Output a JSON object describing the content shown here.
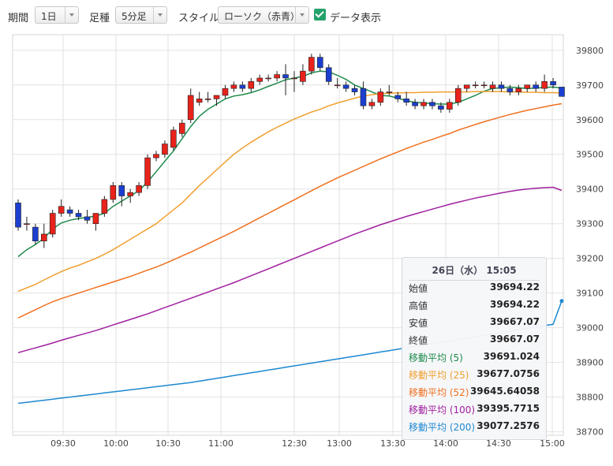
{
  "toolbar": {
    "period_label": "期間",
    "period_value": "1日",
    "type_label": "足種",
    "type_value": "5分足",
    "style_label": "スタイル",
    "style_value": "ローソク（赤青）",
    "data_display_label": "データ表示",
    "data_display_checked": true
  },
  "tooltip": {
    "date": "26日（水）",
    "time": "15:05",
    "rows": [
      {
        "label": "始値",
        "value": "39694.22",
        "color": "#333333"
      },
      {
        "label": "高値",
        "value": "39694.22",
        "color": "#333333"
      },
      {
        "label": "安値",
        "value": "39667.07",
        "color": "#333333"
      },
      {
        "label": "終値",
        "value": "39667.07",
        "color": "#333333"
      },
      {
        "label": "移動平均 (5)",
        "value": "39691.024",
        "color": "#1e8a4c"
      },
      {
        "label": "移動平均 (25)",
        "value": "39677.0756",
        "color": "#f0a030"
      },
      {
        "label": "移動平均 (52)",
        "value": "39645.64058",
        "color": "#f07020"
      },
      {
        "label": "移動平均 (100)",
        "value": "39395.7715",
        "color": "#a020a0"
      },
      {
        "label": "移動平均 (200)",
        "value": "39077.2576",
        "color": "#1e88d0"
      }
    ]
  },
  "chart_data": {
    "type": "candlestick",
    "x_ticks": [
      "09:30",
      "10:00",
      "10:30",
      "11:00",
      "12:30",
      "13:00",
      "13:30",
      "14:00",
      "14:30",
      "15:00"
    ],
    "y_ticks": [
      38700,
      38800,
      38900,
      39000,
      39100,
      39200,
      39300,
      39400,
      39500,
      39600,
      39700,
      39800
    ],
    "ylim": [
      38690,
      39845
    ],
    "colors": {
      "up": "#e8231b",
      "down": "#1c3fd0",
      "grid": "#e2e2e2"
    },
    "candles": [
      [
        39360,
        39370,
        39280,
        39290
      ],
      [
        39300,
        39320,
        39280,
        39300
      ],
      [
        39290,
        39300,
        39240,
        39250
      ],
      [
        39250,
        39300,
        39230,
        39270
      ],
      [
        39270,
        39340,
        39260,
        39330
      ],
      [
        39330,
        39370,
        39320,
        39350
      ],
      [
        39340,
        39350,
        39320,
        39330
      ],
      [
        39330,
        39340,
        39310,
        39320
      ],
      [
        39320,
        39340,
        39300,
        39310
      ],
      [
        39300,
        39330,
        39280,
        39330
      ],
      [
        39330,
        39380,
        39320,
        39370
      ],
      [
        39370,
        39420,
        39360,
        39410
      ],
      [
        39410,
        39420,
        39350,
        39380
      ],
      [
        39380,
        39400,
        39360,
        39390
      ],
      [
        39390,
        39420,
        39380,
        39410
      ],
      [
        39410,
        39500,
        39400,
        39490
      ],
      [
        39490,
        39510,
        39480,
        39500
      ],
      [
        39500,
        39540,
        39490,
        39530
      ],
      [
        39520,
        39580,
        39510,
        39570
      ],
      [
        39560,
        39600,
        39550,
        39590
      ],
      [
        39600,
        39690,
        39590,
        39670
      ],
      [
        39650,
        39680,
        39640,
        39660
      ],
      [
        39660,
        39680,
        39650,
        39660
      ],
      [
        39660,
        39670,
        39640,
        39670
      ],
      [
        39670,
        39700,
        39660,
        39690
      ],
      [
        39690,
        39710,
        39680,
        39700
      ],
      [
        39700,
        39710,
        39680,
        39690
      ],
      [
        39690,
        39720,
        39680,
        39710
      ],
      [
        39710,
        39730,
        39700,
        39720
      ],
      [
        39720,
        39730,
        39710,
        39720
      ],
      [
        39720,
        39740,
        39710,
        39730
      ],
      [
        39730,
        39760,
        39670,
        39720
      ],
      [
        39720,
        39740,
        39680,
        39720
      ],
      [
        39710,
        39760,
        39700,
        39740
      ],
      [
        39740,
        39790,
        39730,
        39780
      ],
      [
        39780,
        39790,
        39740,
        39750
      ],
      [
        39750,
        39760,
        39700,
        39710
      ],
      [
        39700,
        39720,
        39690,
        39700
      ],
      [
        39700,
        39710,
        39680,
        39690
      ],
      [
        39690,
        39700,
        39670,
        39680
      ],
      [
        39690,
        39710,
        39630,
        39640
      ],
      [
        39640,
        39660,
        39630,
        39650
      ],
      [
        39650,
        39690,
        39640,
        39680
      ],
      [
        39680,
        39700,
        39670,
        39680
      ],
      [
        39670,
        39680,
        39650,
        39660
      ],
      [
        39660,
        39680,
        39640,
        39650
      ],
      [
        39650,
        39660,
        39630,
        39640
      ],
      [
        39640,
        39660,
        39630,
        39650
      ],
      [
        39650,
        39660,
        39630,
        39640
      ],
      [
        39640,
        39650,
        39620,
        39630
      ],
      [
        39630,
        39660,
        39620,
        39650
      ],
      [
        39650,
        39700,
        39640,
        39690
      ],
      [
        39690,
        39700,
        39680,
        39700
      ],
      [
        39700,
        39710,
        39690,
        39700
      ],
      [
        39700,
        39710,
        39690,
        39700
      ],
      [
        39690,
        39710,
        39680,
        39700
      ],
      [
        39700,
        39710,
        39680,
        39690
      ],
      [
        39690,
        39700,
        39670,
        39680
      ],
      [
        39680,
        39700,
        39670,
        39690
      ],
      [
        39690,
        39700,
        39680,
        39700
      ],
      [
        39700,
        39710,
        39680,
        39690
      ],
      [
        39690,
        39730,
        39680,
        39710
      ],
      [
        39710,
        39720,
        39690,
        39700
      ],
      [
        39694,
        39694,
        39667,
        39667
      ]
    ],
    "ma": [
      {
        "period": 5,
        "color": "#1e8a4c",
        "values": [
          39205,
          39225,
          39240,
          39258,
          39285,
          39302,
          39310,
          39315,
          39318,
          39322,
          39330,
          39350,
          39365,
          39380,
          39395,
          39420,
          39450,
          39480,
          39510,
          39545,
          39580,
          39610,
          39630,
          39645,
          39660,
          39668,
          39672,
          39678,
          39686,
          39696,
          39705,
          39715,
          39720,
          39725,
          39735,
          39740,
          39738,
          39728,
          39716,
          39700,
          39690,
          39680,
          39670,
          39668,
          39662,
          39655,
          39650,
          39648,
          39646,
          39645,
          39645,
          39650,
          39660,
          39670,
          39682,
          39690,
          39692,
          39694,
          39692,
          39690,
          39691,
          39693,
          39694,
          39691
        ]
      },
      {
        "period": 25,
        "color": "#f0a030",
        "values": [
          39105,
          39115,
          39125,
          39138,
          39150,
          39162,
          39172,
          39180,
          39190,
          39200,
          39212,
          39225,
          39240,
          39255,
          39270,
          39285,
          39300,
          39320,
          39340,
          39360,
          39385,
          39410,
          39432,
          39455,
          39478,
          39500,
          39518,
          39535,
          39550,
          39565,
          39578,
          39590,
          39602,
          39612,
          39622,
          39630,
          39640,
          39648,
          39655,
          39662,
          39668,
          39672,
          39675,
          39676,
          39677,
          39678,
          39678,
          39679,
          39679,
          39680,
          39680,
          39680,
          39680,
          39681,
          39681,
          39681,
          39681,
          39680,
          39680,
          39679,
          39679,
          39678,
          39678,
          39677
        ]
      },
      {
        "period": 52,
        "color": "#f07020",
        "values": [
          39028,
          39040,
          39052,
          39064,
          39075,
          39084,
          39092,
          39100,
          39108,
          39116,
          39124,
          39132,
          39140,
          39148,
          39157,
          39166,
          39175,
          39185,
          39196,
          39207,
          39218,
          39230,
          39242,
          39254,
          39266,
          39278,
          39291,
          39304,
          39317,
          39330,
          39343,
          39356,
          39369,
          39382,
          39395,
          39408,
          39420,
          39432,
          39443,
          39454,
          39465,
          39476,
          39487,
          39497,
          39507,
          39517,
          39526,
          39535,
          39543,
          39552,
          39560,
          39570,
          39578,
          39586,
          39594,
          39601,
          39608,
          39615,
          39621,
          39627,
          39632,
          39637,
          39642,
          39646
        ]
      },
      {
        "period": 100,
        "color": "#a020a0",
        "values": [
          38928,
          38935,
          38942,
          38949,
          38956,
          38964,
          38971,
          38978,
          38985,
          38992,
          39000,
          39008,
          39016,
          39024,
          39032,
          39040,
          39049,
          39058,
          39067,
          39076,
          39085,
          39094,
          39103,
          39112,
          39121,
          39130,
          39140,
          39150,
          39160,
          39170,
          39180,
          39190,
          39200,
          39210,
          39220,
          39230,
          39240,
          39250,
          39260,
          39270,
          39279,
          39288,
          39297,
          39305,
          39313,
          39321,
          39328,
          39335,
          39342,
          39349,
          39356,
          39362,
          39368,
          39374,
          39379,
          39384,
          39389,
          39393,
          39397,
          39400,
          39402,
          39404,
          39405,
          39396
        ]
      },
      {
        "period": 200,
        "color": "#1e88d0",
        "values": [
          38782,
          38785,
          38788,
          38791,
          38794,
          38797,
          38800,
          38803,
          38806,
          38809,
          38812,
          38815,
          38818,
          38821,
          38824,
          38827,
          38830,
          38833,
          38836,
          38839,
          38842,
          38846,
          38850,
          38854,
          38858,
          38862,
          38866,
          38870,
          38874,
          38878,
          38882,
          38886,
          38890,
          38894,
          38898,
          38902,
          38906,
          38910,
          38914,
          38918,
          38922,
          38926,
          38930,
          38934,
          38938,
          38942,
          38946,
          38950,
          38954,
          38958,
          38962,
          38966,
          38970,
          38974,
          38978,
          38982,
          38986,
          38990,
          38994,
          38998,
          39002,
          39006,
          39010,
          39077
        ]
      }
    ]
  }
}
